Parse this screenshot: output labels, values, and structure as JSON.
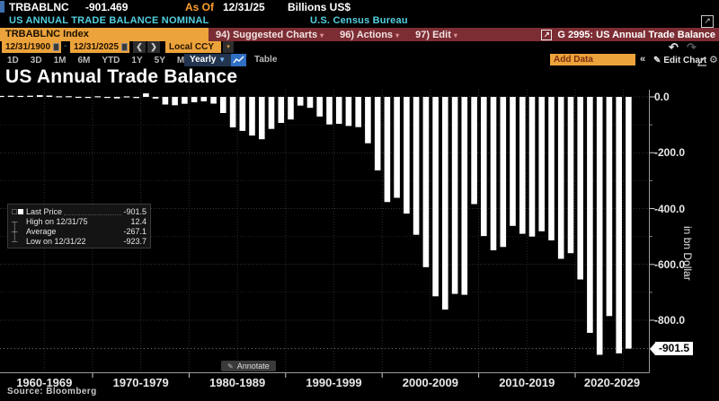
{
  "titlebar": {
    "ticker": "TRBABLNC",
    "last_value": "-901.469",
    "as_of_label": "As Of",
    "as_of_date": "12/31/25",
    "units": "Billions US$"
  },
  "subtitlebar": {
    "description": "US ANNUAL TRADE BALANCE NOMINAL",
    "source_org": "U.S. Census Bureau"
  },
  "menubar": {
    "security_field": "TRBABLNC Index",
    "items": [
      "94) Suggested Charts",
      "96) Actions",
      "97) Edit"
    ],
    "chart_tag": "G 2995: US Annual Trade Balance"
  },
  "toolbar": {
    "date_from": "12/31/1900",
    "date_to": "12/31/2025",
    "currency": "Local CCY",
    "periods": [
      "1D",
      "3D",
      "1M",
      "6M",
      "YTD",
      "1Y",
      "5Y",
      "Max"
    ],
    "frequency": "Yearly",
    "table_label": "Table",
    "add_data_placeholder": "Add Data",
    "edit_chart_label": "Edit Chart"
  },
  "chart_title": "US Annual Trade Balance",
  "legend": {
    "rows": [
      {
        "label": "Last Price",
        "value": "-901.5"
      },
      {
        "label": "High on 12/31/75",
        "value": "12.4"
      },
      {
        "label": "Average",
        "value": "-267.1"
      },
      {
        "label": "Low on 12/31/22",
        "value": "-923.7"
      }
    ]
  },
  "annotate_label": "Annotate",
  "source_label": "Source: Bloomberg",
  "colors": {
    "amber": "#eda33b",
    "menu_red": "#7c2d33",
    "cyan": "#53d0e0",
    "bar": "#ffffff",
    "grid": "#2b2b2b",
    "axis": "#9a9a9a"
  },
  "chart_data": {
    "type": "bar",
    "title": "US Annual Trade Balance",
    "ylabel": "in bn Dollar",
    "units": "billions US$",
    "x_start_year": 1960,
    "years": [
      1960,
      1961,
      1962,
      1963,
      1964,
      1965,
      1966,
      1967,
      1968,
      1969,
      1970,
      1971,
      1972,
      1973,
      1974,
      1975,
      1976,
      1977,
      1978,
      1979,
      1980,
      1981,
      1982,
      1983,
      1984,
      1985,
      1986,
      1987,
      1988,
      1989,
      1990,
      1991,
      1992,
      1993,
      1994,
      1995,
      1996,
      1997,
      1998,
      1999,
      2000,
      2001,
      2002,
      2003,
      2004,
      2005,
      2006,
      2007,
      2008,
      2009,
      2010,
      2011,
      2012,
      2013,
      2014,
      2015,
      2016,
      2017,
      2018,
      2019,
      2020,
      2021,
      2022,
      2023,
      2024,
      2025
    ],
    "values": [
      3.5,
      4.2,
      3.4,
      4.2,
      6.0,
      4.7,
      2.3,
      2.6,
      0.2,
      0.1,
      2.3,
      -1.3,
      -5.4,
      1.9,
      -4.3,
      12.4,
      -6.1,
      -27.2,
      -29.8,
      -24.6,
      -19.4,
      -16.2,
      -24.2,
      -57.8,
      -109.1,
      -121.9,
      -138.5,
      -151.7,
      -114.6,
      -93.1,
      -80.9,
      -31.1,
      -39.1,
      -70.3,
      -98.5,
      -96.4,
      -104.1,
      -108.3,
      -166.1,
      -263.2,
      -376.7,
      -361.5,
      -418.0,
      -493.9,
      -609.9,
      -714.2,
      -761.7,
      -705.4,
      -708.7,
      -383.8,
      -498.4,
      -549.5,
      -537.6,
      -461.9,
      -490.2,
      -500.4,
      -481.2,
      -513.8,
      -579.9,
      -559.7,
      -653.9,
      -845.0,
      -923.7,
      -784.9,
      -918.4,
      -901.5
    ],
    "yticks": [
      0,
      -200,
      -400,
      -600,
      -800
    ],
    "ytick_labels": [
      "0.0",
      "-200.0",
      "-400.0",
      "-600.0",
      "-800.0"
    ],
    "x_labels": [
      "1960-1969",
      "1970-1979",
      "1980-1989",
      "1990-1999",
      "2000-2009",
      "2010-2019",
      "2020-2029"
    ],
    "last_price": -901.5,
    "last_price_label": "-901.5",
    "high": {
      "date": "12/31/75",
      "value": 12.4
    },
    "low": {
      "date": "12/31/22",
      "value": -923.7
    },
    "average": -267.1,
    "ylim": [
      -960,
      20
    ],
    "grid": true,
    "legend_position": "left-middle",
    "bar_color": "#ffffff"
  }
}
